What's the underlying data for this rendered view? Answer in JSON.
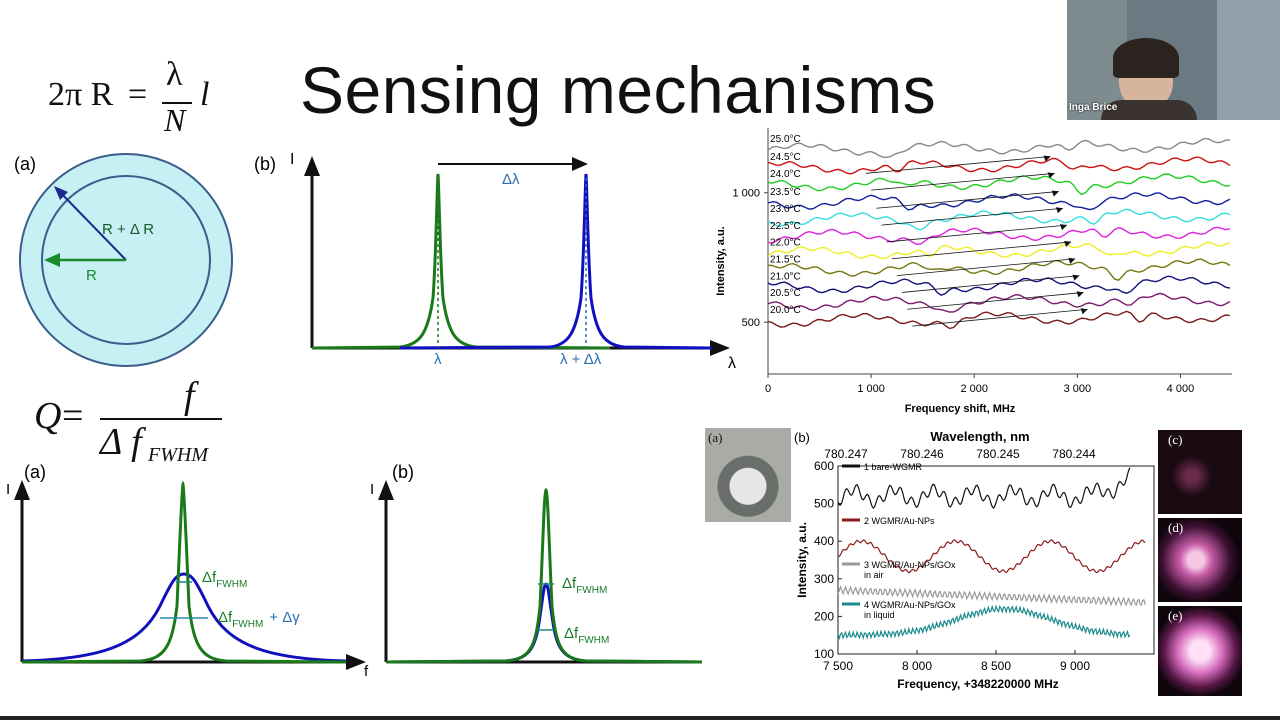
{
  "slide": {
    "title": "Sensing mechanisms",
    "formula_ring": {
      "lhs": "2π R",
      "num": "λ",
      "den": "N",
      "tail": "l"
    },
    "formula_q": {
      "lhs": "Q",
      "num": "f",
      "den": "Δ f",
      "sub": "FWHM"
    }
  },
  "participant": {
    "name": "Inga Brice"
  },
  "ring_diagram": {
    "panel": "(a)",
    "label_outer": "R + Δ R",
    "label_inner": "R",
    "colors": {
      "outer": "#bfeef3",
      "stroke": "#3a5e8c",
      "arrow_outer": "#1a2a8c",
      "arrow_inner": "#1a8a2a"
    }
  },
  "shift_diagram": {
    "panel": "(b)",
    "y_label": "I",
    "x_label": "λ",
    "delta_label": "Δλ",
    "peak1_label": "λ",
    "peak2_label": "λ + Δλ",
    "colors": {
      "green": "#1a7a1a",
      "blue": "#1010c0",
      "label": "#2a6fb0"
    }
  },
  "broadening_a": {
    "panel": "(a)",
    "y_label": "I",
    "x_label": "f",
    "label1": "Δf",
    "label1_sub": "FWHM",
    "label2": "Δf",
    "label2_sub": "FWHM",
    "label2_tail": "+ Δγ"
  },
  "broadening_b": {
    "panel": "(b)",
    "y_label": "I",
    "label1": "Δf",
    "label1_sub": "FWHM",
    "label2": "Δf",
    "label2_sub": "FWHM"
  },
  "temp_chart": {
    "chart_data": {
      "type": "line",
      "title": "",
      "xlabel": "Frequency shift, MHz",
      "ylabel": "Intensity, a.u.",
      "xlim": [
        0,
        4500
      ],
      "x_ticks": [
        "0",
        "1 000",
        "2 000",
        "3 000",
        "4 000"
      ],
      "y_ticks": [
        "500",
        "1 000"
      ],
      "series": [
        {
          "name": "25.0°C",
          "color": "#888888",
          "base": 1165
        },
        {
          "name": "24.5°C",
          "color": "#cc1111",
          "base": 1095
        },
        {
          "name": "24.0°C",
          "color": "#22cc22",
          "base": 1030
        },
        {
          "name": "23.5°C",
          "color": "#112299",
          "base": 960
        },
        {
          "name": "23.0°C",
          "color": "#33dddd",
          "base": 895
        },
        {
          "name": "22.5°C",
          "color": "#dd22dd",
          "base": 830
        },
        {
          "name": "22.0°C",
          "color": "#eeee22",
          "base": 765
        },
        {
          "name": "21.5°C",
          "color": "#777711",
          "base": 700
        },
        {
          "name": "21.0°C",
          "color": "#111177",
          "base": 635
        },
        {
          "name": "20.5°C",
          "color": "#7a1a6a",
          "base": 570
        },
        {
          "name": "20.0°C",
          "color": "#7a1a1a",
          "base": 505
        }
      ]
    }
  },
  "spectrum_chart": {
    "panel_a": "(a)",
    "panel_b": "(b)",
    "panel_c": "(c)",
    "panel_d": "(d)",
    "panel_e": "(e)",
    "chart_data": {
      "type": "line",
      "title": "",
      "top_xlabel": "Wavelength, nm",
      "top_ticks": [
        "780.247",
        "780.246",
        "780.245",
        "780.244"
      ],
      "xlabel": "Frequency, +348220000 MHz",
      "ylabel": "Intensity, a.u.",
      "xlim": [
        7500,
        9500
      ],
      "ylim": [
        100,
        600
      ],
      "x_ticks": [
        "7 500",
        "8 000",
        "8 500",
        "9 000"
      ],
      "y_ticks": [
        "100",
        "200",
        "300",
        "400",
        "500",
        "600"
      ],
      "series": [
        {
          "name": "1 bare-WGMR",
          "color": "#111111",
          "level": 520
        },
        {
          "name": "2 WGMR/Au-NPs",
          "color": "#8a1a1a",
          "level": 380
        },
        {
          "name": "3 WGMR/Au-NPs/GOx",
          "note": "in air",
          "color": "#999999",
          "level": 260
        },
        {
          "name": "4 WGMR/Au-NPs/GOx",
          "note": "in liquid",
          "color": "#1a8a8a",
          "level": 180
        }
      ]
    }
  }
}
